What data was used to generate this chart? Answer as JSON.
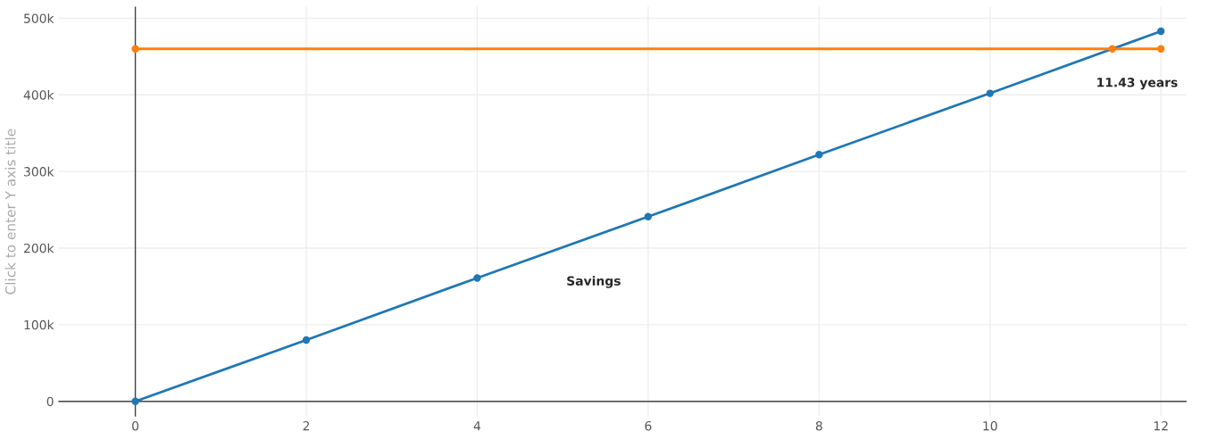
{
  "chart_data": {
    "type": "line",
    "ylabel": "Click to enter Y axis title",
    "series": [
      {
        "name": "Savings",
        "color": "#1f77b4",
        "x": [
          0,
          2,
          4,
          6,
          8,
          10,
          12
        ],
        "values": [
          0,
          80000,
          161000,
          241000,
          322000,
          402000,
          483000
        ]
      },
      {
        "color": "#ff7f0e",
        "x": [
          0,
          11.43,
          12
        ],
        "values": [
          460000,
          460000,
          460000
        ]
      }
    ],
    "annotations": [
      {
        "text": "11.43 years",
        "x": 11.43,
        "y": 460000
      }
    ],
    "xlim": [
      -0.9,
      12.3
    ],
    "xticks": [
      0,
      2,
      4,
      6,
      8,
      10,
      12
    ],
    "ylim": [
      -20000,
      515000
    ],
    "yticks": [
      {
        "value": 0,
        "label": "0"
      },
      {
        "value": 100000,
        "label": "100k"
      },
      {
        "value": 200000,
        "label": "200k"
      },
      {
        "value": 300000,
        "label": "300k"
      },
      {
        "value": 400000,
        "label": "400k"
      },
      {
        "value": 500000,
        "label": "500k"
      }
    ],
    "grid": true,
    "marker": "circle",
    "line_style": "solid",
    "legend": false
  }
}
